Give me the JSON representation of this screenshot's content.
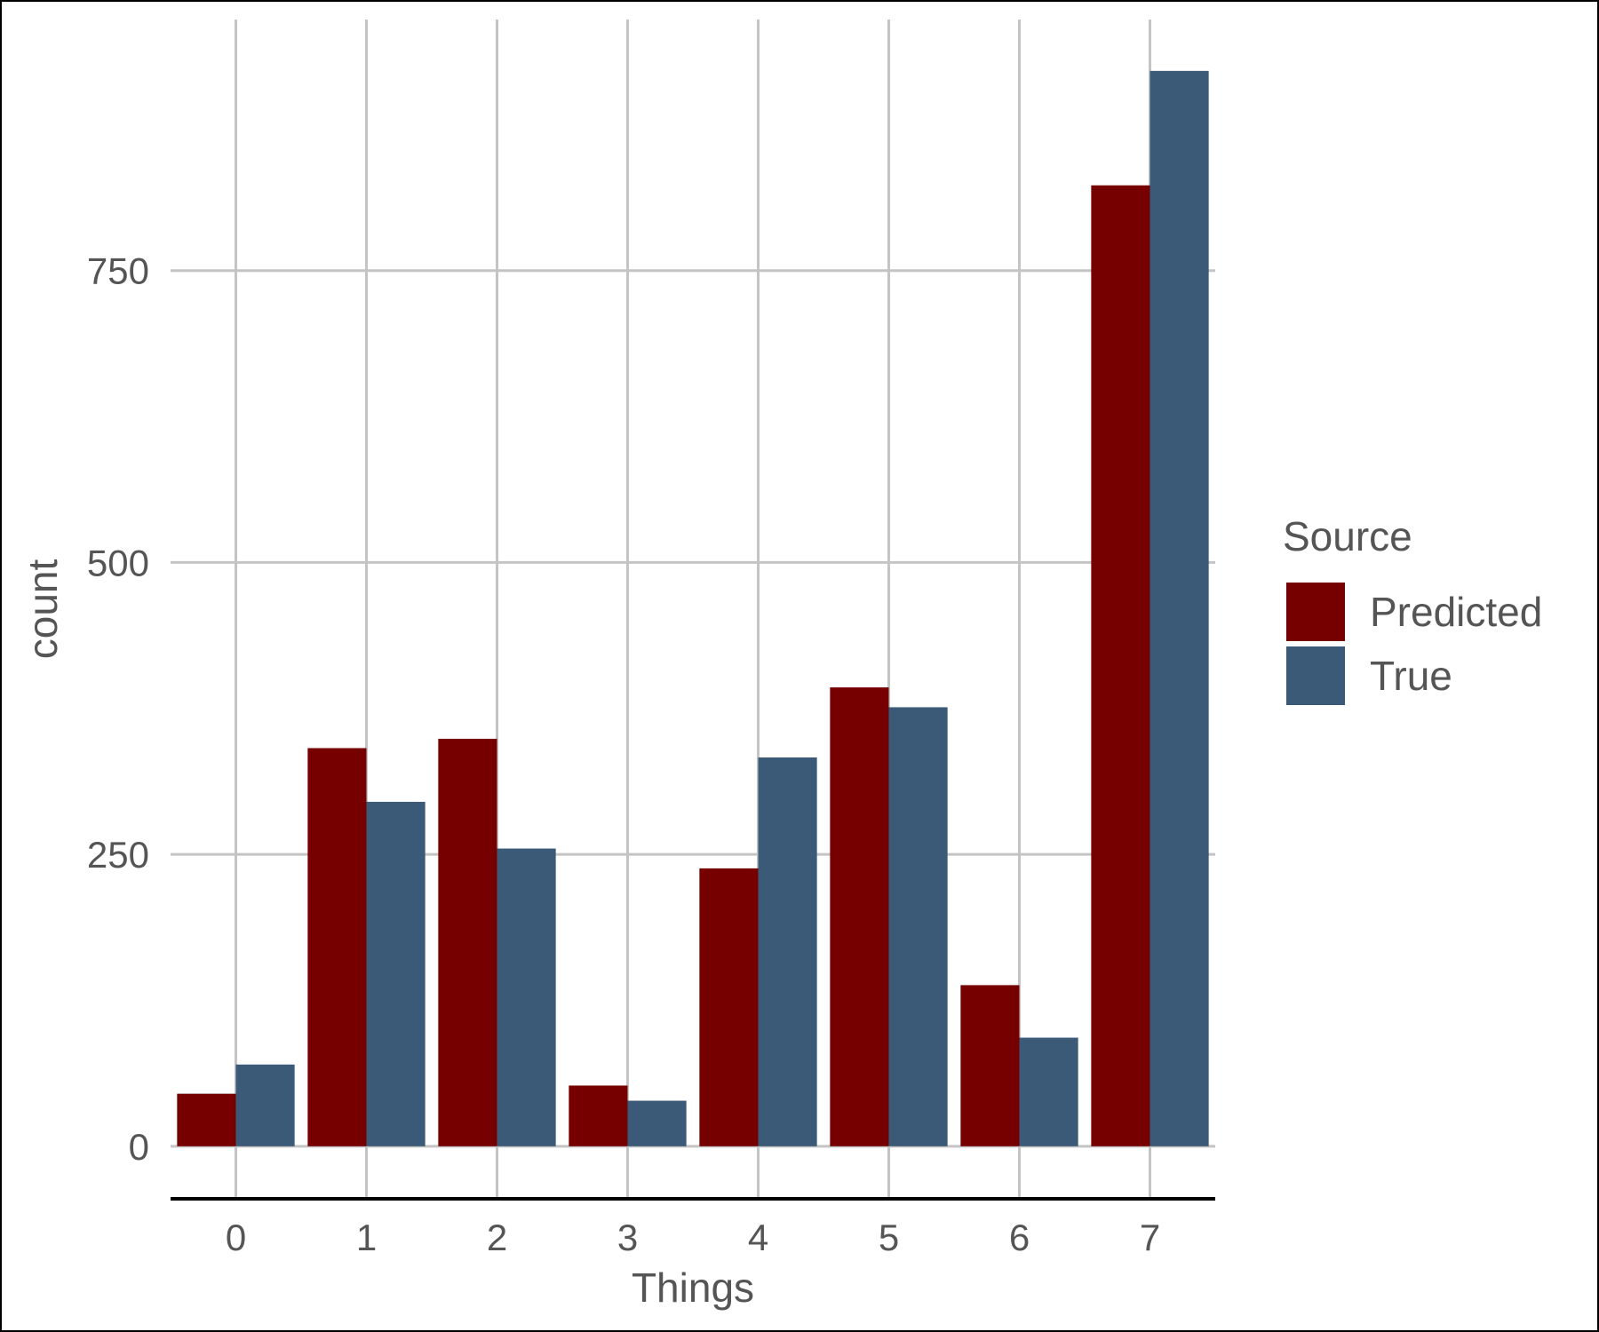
{
  "chart_data": {
    "type": "bar",
    "xlabel": "Things",
    "ylabel": "count",
    "categories": [
      "0",
      "1",
      "2",
      "3",
      "4",
      "5",
      "6",
      "7"
    ],
    "series": [
      {
        "name": "Predicted",
        "color": "#760000",
        "values": [
          45,
          341,
          349,
          52,
          238,
          393,
          138,
          823
        ]
      },
      {
        "name": "True",
        "color": "#3a5a78",
        "values": [
          70,
          295,
          255,
          39,
          333,
          376,
          93,
          921
        ]
      }
    ],
    "y_ticks": [
      0,
      250,
      500,
      750
    ],
    "y_tick_labels": [
      "0",
      "250",
      "500",
      "750"
    ],
    "ylim": [
      -45,
      965
    ],
    "grid": true,
    "legend": {
      "title": "Source",
      "position": "right"
    }
  }
}
